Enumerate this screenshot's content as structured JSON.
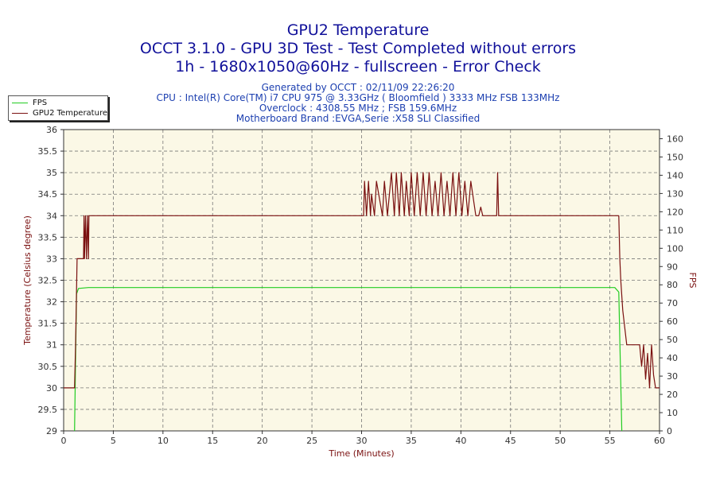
{
  "header": {
    "title": "GPU2 Temperature",
    "subtitle1": "OCCT 3.1.0 - GPU 3D Test - Test Completed without errors",
    "subtitle2": "1h - 1680x1050@60Hz - fullscreen - Error Check"
  },
  "info": {
    "generated": "Generated by OCCT : 02/11/09 22:26:20",
    "cpu": "CPU : Intel(R) Core(TM) i7 CPU 975 @ 3.33GHz ( Bloomfield ) 3333 MHz FSB 133MHz",
    "overclock": "Overclock : 4308.55 MHz ; FSB 159.6MHz",
    "motherboard": "Motherboard Brand :EVGA,Serie :X58 SLI Classified"
  },
  "legend": {
    "fps": "FPS",
    "temp": "GPU2 Temperature"
  },
  "colors": {
    "fps": "#22cc22",
    "temp": "#7a1010",
    "plot_bg": "#fbf8e6",
    "axis_text_left": "#7a1010",
    "axis_text_right": "#7a1010"
  },
  "chart_data": {
    "type": "line",
    "title": "GPU2 Temperature",
    "xlabel": "Time (Minutes)",
    "ylabel": "Temperature (Celsius degree)",
    "y2label": "FPS",
    "xlim": [
      0,
      60
    ],
    "ylim": [
      29,
      36
    ],
    "y2lim": [
      0,
      165
    ],
    "x_ticks": [
      0,
      5,
      10,
      15,
      20,
      25,
      30,
      35,
      40,
      45,
      50,
      55,
      60
    ],
    "y_ticks": [
      29,
      29.5,
      30,
      30.5,
      31,
      31.5,
      32,
      32.5,
      33,
      33.5,
      34,
      34.5,
      35,
      35.5,
      36
    ],
    "y2_ticks": [
      0,
      10,
      20,
      30,
      40,
      50,
      60,
      70,
      80,
      90,
      100,
      110,
      120,
      130,
      140,
      150,
      160
    ],
    "grid": true,
    "legend_position": "top-left",
    "series": [
      {
        "name": "FPS",
        "axis": "right",
        "x": [
          1.1,
          1.3,
          1.5,
          2.5,
          10,
          20,
          30,
          40,
          50,
          55.5,
          55.9,
          56.2
        ],
        "y": [
          0,
          75,
          78,
          78.5,
          78.5,
          78.5,
          78.5,
          78.5,
          78.5,
          78.5,
          76,
          0
        ]
      },
      {
        "name": "GPU2 Temperature",
        "axis": "left",
        "x": [
          0,
          1.1,
          1.2,
          1.35,
          1.4,
          2.0,
          2.05,
          2.1,
          2.2,
          2.3,
          2.4,
          2.5,
          2.55,
          30.2,
          30.3,
          30.5,
          30.7,
          30.9,
          31.0,
          31.3,
          31.5,
          32.1,
          32.3,
          32.6,
          33.0,
          33.3,
          33.5,
          33.8,
          34.0,
          34.3,
          34.5,
          34.8,
          35.0,
          35.3,
          35.6,
          35.9,
          36.2,
          36.5,
          36.8,
          37.1,
          37.4,
          37.7,
          38.0,
          38.3,
          38.6,
          38.9,
          39.2,
          39.5,
          39.8,
          40.1,
          40.4,
          40.7,
          41.0,
          41.5,
          41.8,
          42.0,
          42.2,
          43.0,
          43.6,
          43.7,
          43.8,
          55.9,
          56.0,
          56.1,
          56.3,
          56.5,
          56.7,
          57.0,
          57.5,
          58.0,
          58.2,
          58.4,
          58.6,
          58.8,
          59.0,
          59.2,
          59.4,
          59.6,
          60.0
        ],
        "y": [
          30,
          30,
          31,
          33,
          33,
          33,
          34,
          33,
          34,
          33,
          34,
          33,
          34,
          34,
          34.8,
          34,
          34.8,
          34,
          34.5,
          34,
          34.8,
          34,
          34.8,
          34,
          35,
          34,
          35,
          34,
          35,
          34,
          34.8,
          34,
          35,
          34,
          35,
          34,
          35,
          34,
          35,
          34,
          34.8,
          34,
          35,
          34,
          34.8,
          34,
          35,
          34,
          35,
          34,
          34.8,
          34,
          34.8,
          34,
          34,
          34.2,
          34,
          34,
          34,
          35,
          34,
          34,
          33,
          32.5,
          31.8,
          31.4,
          31,
          31,
          31,
          31,
          30.5,
          31,
          30.2,
          30.8,
          30,
          31,
          30.3,
          30,
          30
        ]
      }
    ]
  }
}
